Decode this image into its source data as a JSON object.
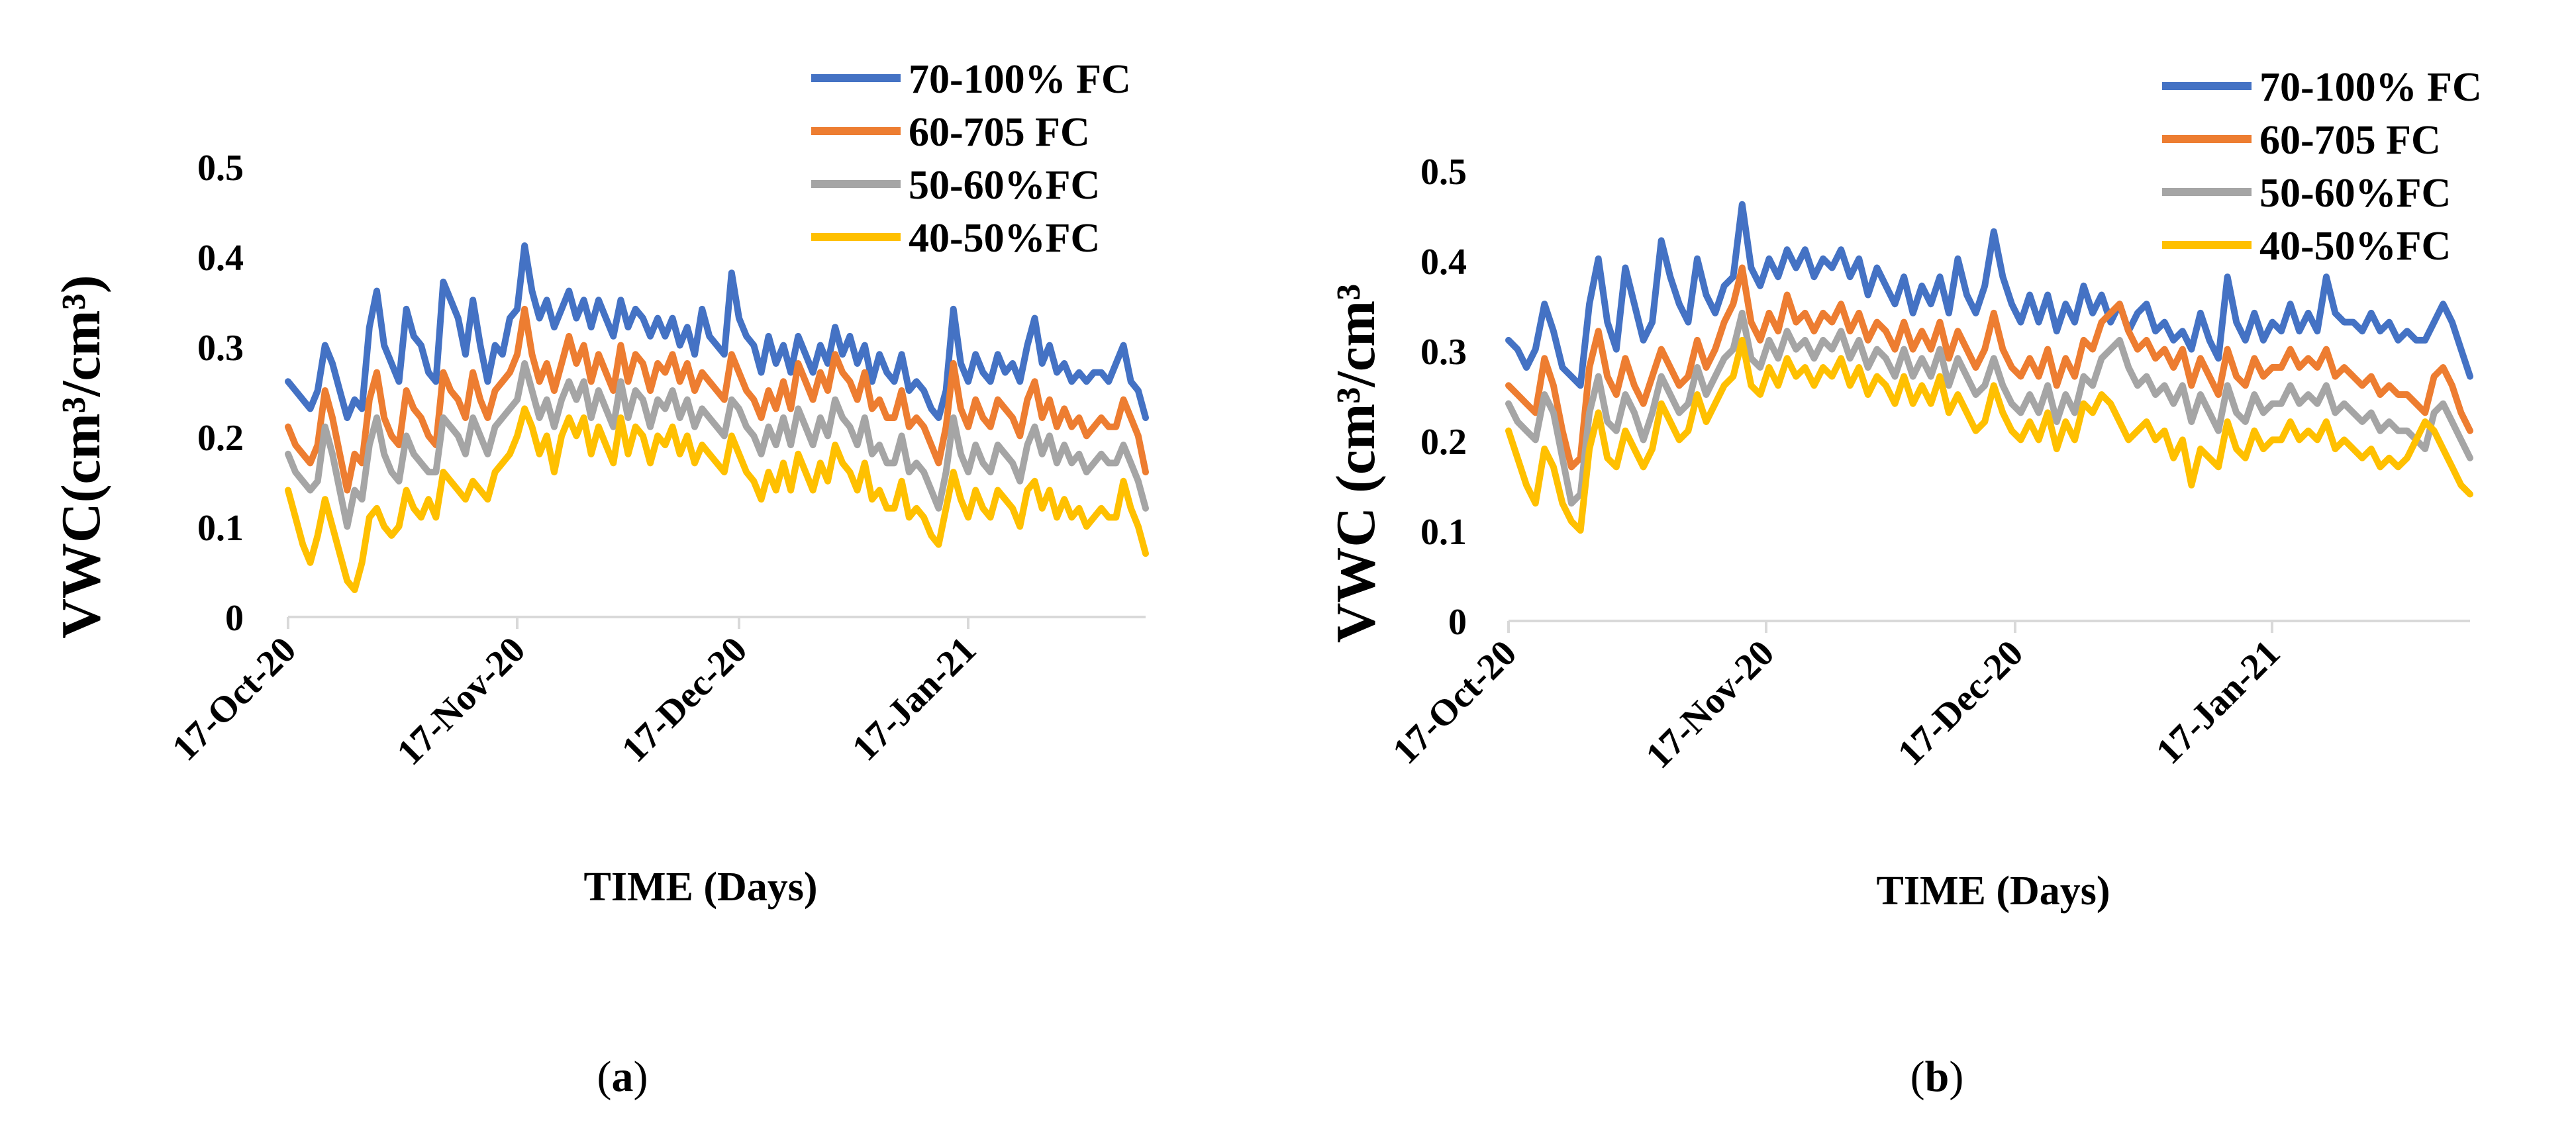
{
  "chart_data": [
    {
      "type": "line",
      "panel": "a",
      "ylabel": "VWC(cm³/cm³)",
      "xlabel": "TIME (Days)",
      "ylim": [
        0,
        0.5
      ],
      "yticks": [
        "0",
        "0.1",
        "0.2",
        "0.3",
        "0.4",
        "0.5"
      ],
      "xticks": [
        "17-Oct-20",
        "17-Nov-20",
        "17-Dec-20",
        "17-Jan-21"
      ],
      "x_range_days": [
        0,
        116
      ],
      "legend_position": "top-right",
      "series": [
        {
          "name": "70-100% FC",
          "color": "#4472C4",
          "values": [
            0.26,
            0.25,
            0.24,
            0.23,
            0.25,
            0.3,
            0.28,
            0.25,
            0.22,
            0.24,
            0.23,
            0.32,
            0.36,
            0.3,
            0.28,
            0.26,
            0.34,
            0.31,
            0.3,
            0.27,
            0.26,
            0.37,
            0.35,
            0.33,
            0.29,
            0.35,
            0.3,
            0.26,
            0.3,
            0.29,
            0.33,
            0.34,
            0.41,
            0.36,
            0.33,
            0.35,
            0.32,
            0.34,
            0.36,
            0.33,
            0.35,
            0.32,
            0.35,
            0.33,
            0.31,
            0.35,
            0.32,
            0.34,
            0.33,
            0.31,
            0.33,
            0.31,
            0.33,
            0.3,
            0.32,
            0.29,
            0.34,
            0.31,
            0.3,
            0.29,
            0.38,
            0.33,
            0.31,
            0.3,
            0.27,
            0.31,
            0.28,
            0.3,
            0.27,
            0.31,
            0.29,
            0.27,
            0.3,
            0.28,
            0.32,
            0.29,
            0.31,
            0.28,
            0.3,
            0.26,
            0.29,
            0.27,
            0.26,
            0.29,
            0.25,
            0.26,
            0.25,
            0.23,
            0.22,
            0.25,
            0.34,
            0.28,
            0.26,
            0.29,
            0.27,
            0.26,
            0.29,
            0.27,
            0.28,
            0.26,
            0.3,
            0.33,
            0.28,
            0.3,
            0.27,
            0.28,
            0.26,
            0.27,
            0.26,
            0.27,
            0.27,
            0.26,
            0.28,
            0.3,
            0.26,
            0.25,
            0.22
          ]
        },
        {
          "name": "60-705 FC",
          "color": "#ED7D31",
          "values": [
            0.21,
            0.19,
            0.18,
            0.17,
            0.19,
            0.25,
            0.22,
            0.18,
            0.14,
            0.18,
            0.17,
            0.24,
            0.27,
            0.22,
            0.2,
            0.19,
            0.25,
            0.23,
            0.22,
            0.2,
            0.19,
            0.27,
            0.25,
            0.24,
            0.22,
            0.27,
            0.24,
            0.22,
            0.25,
            0.26,
            0.27,
            0.29,
            0.34,
            0.29,
            0.26,
            0.28,
            0.25,
            0.28,
            0.31,
            0.28,
            0.3,
            0.26,
            0.29,
            0.27,
            0.25,
            0.3,
            0.26,
            0.29,
            0.28,
            0.25,
            0.28,
            0.27,
            0.29,
            0.26,
            0.28,
            0.25,
            0.27,
            0.26,
            0.25,
            0.24,
            0.29,
            0.27,
            0.25,
            0.24,
            0.22,
            0.25,
            0.23,
            0.26,
            0.23,
            0.28,
            0.26,
            0.24,
            0.27,
            0.25,
            0.29,
            0.27,
            0.26,
            0.24,
            0.27,
            0.23,
            0.24,
            0.22,
            0.22,
            0.25,
            0.21,
            0.22,
            0.21,
            0.19,
            0.17,
            0.21,
            0.28,
            0.23,
            0.21,
            0.24,
            0.22,
            0.21,
            0.24,
            0.23,
            0.22,
            0.2,
            0.24,
            0.26,
            0.22,
            0.24,
            0.21,
            0.23,
            0.21,
            0.22,
            0.2,
            0.21,
            0.22,
            0.21,
            0.21,
            0.24,
            0.22,
            0.2,
            0.16
          ]
        },
        {
          "name": "50-60%FC",
          "color": "#A5A5A5",
          "values": [
            0.18,
            0.16,
            0.15,
            0.14,
            0.15,
            0.21,
            0.18,
            0.14,
            0.1,
            0.14,
            0.13,
            0.19,
            0.22,
            0.18,
            0.16,
            0.15,
            0.2,
            0.18,
            0.17,
            0.16,
            0.16,
            0.22,
            0.21,
            0.2,
            0.18,
            0.22,
            0.2,
            0.18,
            0.21,
            0.22,
            0.23,
            0.24,
            0.28,
            0.25,
            0.22,
            0.24,
            0.21,
            0.24,
            0.26,
            0.24,
            0.26,
            0.22,
            0.25,
            0.23,
            0.21,
            0.26,
            0.22,
            0.25,
            0.24,
            0.21,
            0.24,
            0.23,
            0.25,
            0.22,
            0.24,
            0.21,
            0.23,
            0.22,
            0.21,
            0.2,
            0.24,
            0.23,
            0.21,
            0.2,
            0.18,
            0.21,
            0.19,
            0.22,
            0.19,
            0.23,
            0.21,
            0.19,
            0.22,
            0.2,
            0.24,
            0.22,
            0.21,
            0.19,
            0.22,
            0.18,
            0.19,
            0.17,
            0.17,
            0.2,
            0.16,
            0.17,
            0.16,
            0.14,
            0.12,
            0.16,
            0.22,
            0.18,
            0.16,
            0.19,
            0.17,
            0.16,
            0.19,
            0.18,
            0.17,
            0.15,
            0.19,
            0.21,
            0.18,
            0.2,
            0.17,
            0.19,
            0.17,
            0.18,
            0.16,
            0.17,
            0.18,
            0.17,
            0.17,
            0.19,
            0.17,
            0.15,
            0.12
          ]
        },
        {
          "name": "40-50%FC",
          "color": "#FFC000",
          "values": [
            0.14,
            0.11,
            0.08,
            0.06,
            0.09,
            0.13,
            0.1,
            0.07,
            0.04,
            0.03,
            0.06,
            0.11,
            0.12,
            0.1,
            0.09,
            0.1,
            0.14,
            0.12,
            0.11,
            0.13,
            0.11,
            0.16,
            0.15,
            0.14,
            0.13,
            0.15,
            0.14,
            0.13,
            0.16,
            0.17,
            0.18,
            0.2,
            0.23,
            0.21,
            0.18,
            0.2,
            0.16,
            0.2,
            0.22,
            0.2,
            0.22,
            0.18,
            0.21,
            0.19,
            0.17,
            0.22,
            0.18,
            0.21,
            0.2,
            0.17,
            0.2,
            0.19,
            0.21,
            0.18,
            0.2,
            0.17,
            0.19,
            0.18,
            0.17,
            0.16,
            0.2,
            0.18,
            0.16,
            0.15,
            0.13,
            0.16,
            0.14,
            0.17,
            0.14,
            0.18,
            0.16,
            0.14,
            0.17,
            0.15,
            0.19,
            0.17,
            0.16,
            0.14,
            0.17,
            0.13,
            0.14,
            0.12,
            0.12,
            0.15,
            0.11,
            0.12,
            0.11,
            0.09,
            0.08,
            0.12,
            0.16,
            0.13,
            0.11,
            0.14,
            0.12,
            0.11,
            0.14,
            0.13,
            0.12,
            0.1,
            0.14,
            0.15,
            0.12,
            0.14,
            0.11,
            0.13,
            0.11,
            0.12,
            0.1,
            0.11,
            0.12,
            0.11,
            0.11,
            0.15,
            0.12,
            0.1,
            0.07
          ]
        }
      ]
    },
    {
      "type": "line",
      "panel": "b",
      "ylabel": "VWC (cm³/cm³",
      "xlabel": "TIME (Days)",
      "ylim": [
        0,
        0.5
      ],
      "yticks": [
        "0",
        "0.1",
        "0.2",
        "0.3",
        "0.4",
        "0.5"
      ],
      "xticks": [
        "17-Oct-20",
        "17-Nov-20",
        "17-Dec-20",
        "17-Jan-21"
      ],
      "x_range_days": [
        0,
        119
      ],
      "legend_position": "top-right",
      "series": [
        {
          "name": "70-100% FC",
          "color": "#4472C4",
          "values": [
            0.31,
            0.3,
            0.28,
            0.3,
            0.35,
            0.32,
            0.28,
            0.27,
            0.26,
            0.35,
            0.4,
            0.33,
            0.3,
            0.39,
            0.35,
            0.31,
            0.33,
            0.42,
            0.38,
            0.35,
            0.33,
            0.4,
            0.36,
            0.34,
            0.37,
            0.38,
            0.46,
            0.39,
            0.37,
            0.4,
            0.38,
            0.41,
            0.39,
            0.41,
            0.38,
            0.4,
            0.39,
            0.41,
            0.38,
            0.4,
            0.36,
            0.39,
            0.37,
            0.35,
            0.38,
            0.34,
            0.37,
            0.35,
            0.38,
            0.34,
            0.4,
            0.36,
            0.34,
            0.37,
            0.43,
            0.38,
            0.35,
            0.33,
            0.36,
            0.33,
            0.36,
            0.32,
            0.35,
            0.33,
            0.37,
            0.34,
            0.36,
            0.33,
            0.35,
            0.32,
            0.34,
            0.35,
            0.32,
            0.33,
            0.31,
            0.32,
            0.3,
            0.34,
            0.31,
            0.29,
            0.38,
            0.33,
            0.31,
            0.34,
            0.31,
            0.33,
            0.32,
            0.35,
            0.32,
            0.34,
            0.32,
            0.38,
            0.34,
            0.33,
            0.33,
            0.32,
            0.34,
            0.32,
            0.33,
            0.31,
            0.32,
            0.31,
            0.31,
            0.33,
            0.35,
            0.33,
            0.3,
            0.27
          ]
        },
        {
          "name": "60-705 FC",
          "color": "#ED7D31",
          "values": [
            0.26,
            0.25,
            0.24,
            0.23,
            0.29,
            0.26,
            0.21,
            0.17,
            0.18,
            0.28,
            0.32,
            0.27,
            0.25,
            0.29,
            0.26,
            0.24,
            0.27,
            0.3,
            0.28,
            0.26,
            0.27,
            0.31,
            0.28,
            0.3,
            0.33,
            0.35,
            0.39,
            0.33,
            0.31,
            0.34,
            0.32,
            0.36,
            0.33,
            0.34,
            0.32,
            0.34,
            0.33,
            0.35,
            0.32,
            0.34,
            0.31,
            0.33,
            0.32,
            0.3,
            0.33,
            0.3,
            0.32,
            0.3,
            0.33,
            0.29,
            0.32,
            0.3,
            0.28,
            0.3,
            0.34,
            0.3,
            0.28,
            0.27,
            0.29,
            0.27,
            0.3,
            0.26,
            0.29,
            0.27,
            0.31,
            0.3,
            0.33,
            0.34,
            0.35,
            0.32,
            0.3,
            0.31,
            0.29,
            0.3,
            0.28,
            0.3,
            0.26,
            0.29,
            0.27,
            0.25,
            0.3,
            0.27,
            0.26,
            0.29,
            0.27,
            0.28,
            0.28,
            0.3,
            0.28,
            0.29,
            0.28,
            0.3,
            0.27,
            0.28,
            0.27,
            0.26,
            0.27,
            0.25,
            0.26,
            0.25,
            0.25,
            0.24,
            0.23,
            0.27,
            0.28,
            0.26,
            0.23,
            0.21
          ]
        },
        {
          "name": "50-60%FC",
          "color": "#A5A5A5",
          "values": [
            0.24,
            0.22,
            0.21,
            0.2,
            0.25,
            0.23,
            0.18,
            0.13,
            0.14,
            0.23,
            0.27,
            0.22,
            0.21,
            0.25,
            0.23,
            0.2,
            0.23,
            0.27,
            0.25,
            0.23,
            0.24,
            0.28,
            0.25,
            0.27,
            0.29,
            0.3,
            0.34,
            0.29,
            0.28,
            0.31,
            0.29,
            0.32,
            0.3,
            0.31,
            0.29,
            0.31,
            0.3,
            0.32,
            0.29,
            0.31,
            0.28,
            0.3,
            0.29,
            0.27,
            0.3,
            0.27,
            0.29,
            0.27,
            0.3,
            0.26,
            0.29,
            0.27,
            0.25,
            0.26,
            0.29,
            0.26,
            0.24,
            0.23,
            0.25,
            0.23,
            0.26,
            0.22,
            0.25,
            0.23,
            0.27,
            0.26,
            0.29,
            0.3,
            0.31,
            0.28,
            0.26,
            0.27,
            0.25,
            0.26,
            0.24,
            0.26,
            0.22,
            0.25,
            0.23,
            0.21,
            0.26,
            0.23,
            0.22,
            0.25,
            0.23,
            0.24,
            0.24,
            0.26,
            0.24,
            0.25,
            0.24,
            0.26,
            0.23,
            0.24,
            0.23,
            0.22,
            0.23,
            0.21,
            0.22,
            0.21,
            0.21,
            0.2,
            0.19,
            0.23,
            0.24,
            0.22,
            0.2,
            0.18
          ]
        },
        {
          "name": "40-50%FC",
          "color": "#FFC000",
          "values": [
            0.21,
            0.18,
            0.15,
            0.13,
            0.19,
            0.17,
            0.13,
            0.11,
            0.1,
            0.19,
            0.23,
            0.18,
            0.17,
            0.21,
            0.19,
            0.17,
            0.19,
            0.24,
            0.22,
            0.2,
            0.21,
            0.25,
            0.22,
            0.24,
            0.26,
            0.27,
            0.31,
            0.26,
            0.25,
            0.28,
            0.26,
            0.29,
            0.27,
            0.28,
            0.26,
            0.28,
            0.27,
            0.29,
            0.26,
            0.28,
            0.25,
            0.27,
            0.26,
            0.24,
            0.27,
            0.24,
            0.26,
            0.24,
            0.27,
            0.23,
            0.25,
            0.23,
            0.21,
            0.22,
            0.26,
            0.23,
            0.21,
            0.2,
            0.22,
            0.2,
            0.23,
            0.19,
            0.22,
            0.2,
            0.24,
            0.23,
            0.25,
            0.24,
            0.22,
            0.2,
            0.21,
            0.22,
            0.2,
            0.21,
            0.18,
            0.2,
            0.15,
            0.19,
            0.18,
            0.17,
            0.22,
            0.19,
            0.18,
            0.21,
            0.19,
            0.2,
            0.2,
            0.22,
            0.2,
            0.21,
            0.2,
            0.22,
            0.19,
            0.2,
            0.19,
            0.18,
            0.19,
            0.17,
            0.18,
            0.17,
            0.18,
            0.2,
            0.22,
            0.21,
            0.19,
            0.17,
            0.15,
            0.14
          ]
        }
      ]
    }
  ]
}
